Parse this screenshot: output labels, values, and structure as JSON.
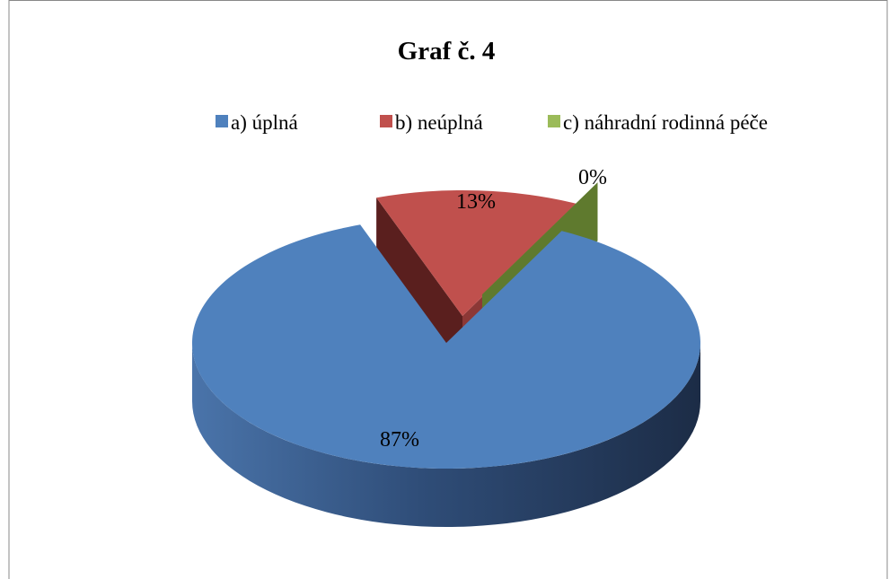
{
  "chart_data": {
    "type": "pie3d",
    "title": "Graf č. 4",
    "categories": [
      "a) úplná",
      "b) neúplná",
      "c) náhradní rodinná péče"
    ],
    "values": [
      87,
      13,
      0
    ],
    "value_labels": [
      "87%",
      "13%",
      "0%"
    ],
    "colors": [
      "#4f81bd",
      "#c0504d",
      "#9bbb59"
    ],
    "legend": "top"
  }
}
